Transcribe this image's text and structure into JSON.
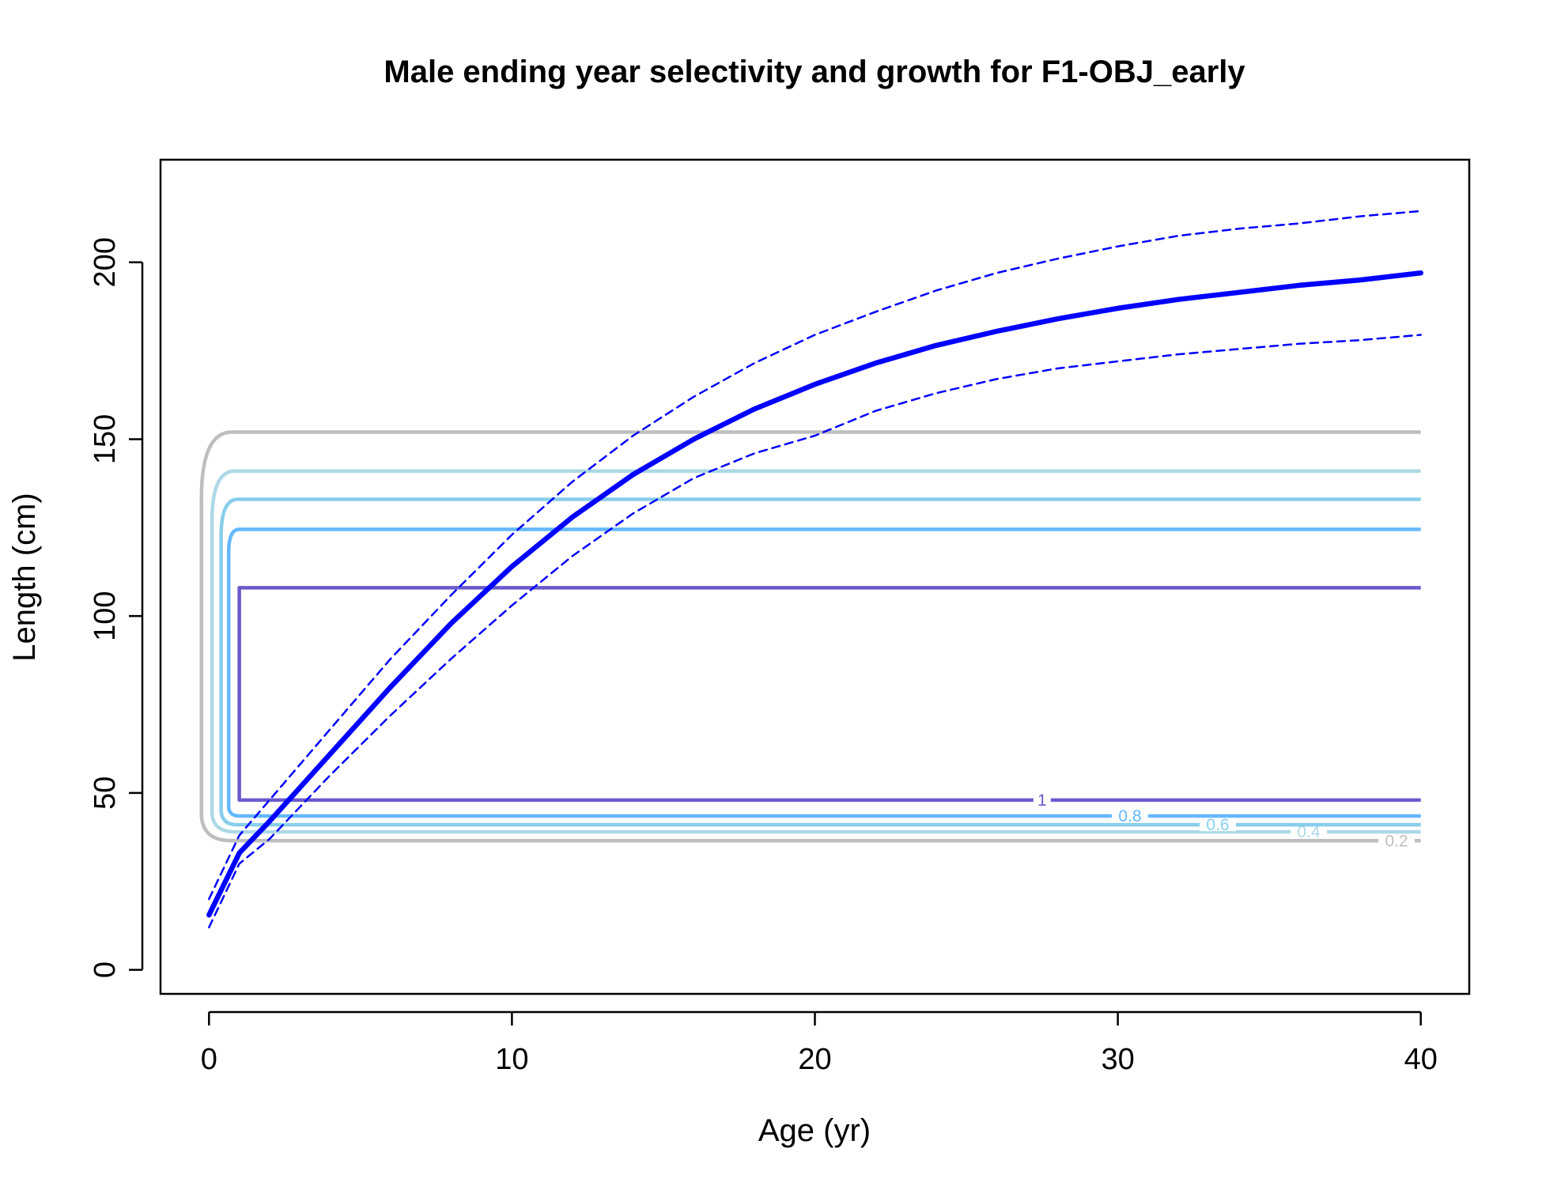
{
  "chart_data": {
    "type": "line",
    "title": "Male ending year selectivity and growth for F1-OBJ_early",
    "xlabel": "Age (yr)",
    "ylabel": "Length (cm)",
    "xlim": [
      -1.6,
      41.6
    ],
    "ylim": [
      -6.8,
      229
    ],
    "xticks": [
      0,
      10,
      20,
      30,
      40
    ],
    "yticks": [
      0,
      50,
      100,
      150,
      200
    ],
    "grid": false,
    "series": [
      {
        "role": "mean growth",
        "color": "#0000ff",
        "style": "solid-thick",
        "x": [
          0,
          1,
          2,
          4,
          6,
          8,
          10,
          12,
          14,
          16,
          18,
          20,
          22,
          24,
          26,
          28,
          30,
          32,
          34,
          36,
          38,
          40
        ],
        "y": [
          15.5,
          33,
          42,
          61,
          80,
          98,
          114,
          128,
          140,
          150,
          158.5,
          165.5,
          171.5,
          176.5,
          180.5,
          184,
          187,
          189.5,
          191.5,
          193.5,
          195,
          197
        ]
      },
      {
        "role": "upper interval",
        "color": "#0000ff",
        "style": "dashed",
        "x": [
          0,
          1,
          2,
          4,
          6,
          8,
          10,
          12,
          14,
          16,
          18,
          20,
          22,
          24,
          26,
          28,
          30,
          32,
          34,
          36,
          38,
          40
        ],
        "y": [
          20,
          38,
          48,
          68,
          88,
          106,
          123,
          138,
          151,
          162,
          171.5,
          179.5,
          186,
          192,
          197,
          201,
          204.5,
          207.5,
          209.5,
          211,
          213,
          214.5
        ]
      },
      {
        "role": "lower interval",
        "color": "#0000ff",
        "style": "dashed",
        "x": [
          0,
          1,
          2,
          4,
          6,
          8,
          10,
          12,
          14,
          16,
          18,
          20,
          22,
          24,
          26,
          28,
          30,
          32,
          34,
          36,
          38,
          40
        ],
        "y": [
          12,
          30,
          37,
          55,
          72,
          88,
          103,
          117,
          129,
          139,
          146,
          151,
          158,
          163,
          167,
          170,
          172,
          174,
          175.5,
          177,
          178,
          179.5
        ]
      }
    ],
    "contours": [
      {
        "level": "0.2",
        "color": "#bebebe",
        "low": 36.5,
        "high": 152,
        "x_left": -0.25,
        "corner": 1.0,
        "label_x": 39.2
      },
      {
        "level": "0.4",
        "color": "#add8e6",
        "low": 39,
        "high": 141,
        "x_left": 0.1,
        "corner": 0.75,
        "label_x": 36.3
      },
      {
        "level": "0.6",
        "color": "#87ceeb",
        "low": 41,
        "high": 133,
        "x_left": 0.4,
        "corner": 0.55,
        "label_x": 33.3
      },
      {
        "level": "0.8",
        "color": "#63b8ff",
        "low": 43.5,
        "high": 124.5,
        "x_left": 0.65,
        "corner": 0.35,
        "label_x": 30.4
      },
      {
        "level": "1",
        "color": "#6a5acd",
        "low": 48,
        "high": 108,
        "x_left": 1.0,
        "corner": 0.0,
        "label_x": 27.5
      }
    ]
  }
}
